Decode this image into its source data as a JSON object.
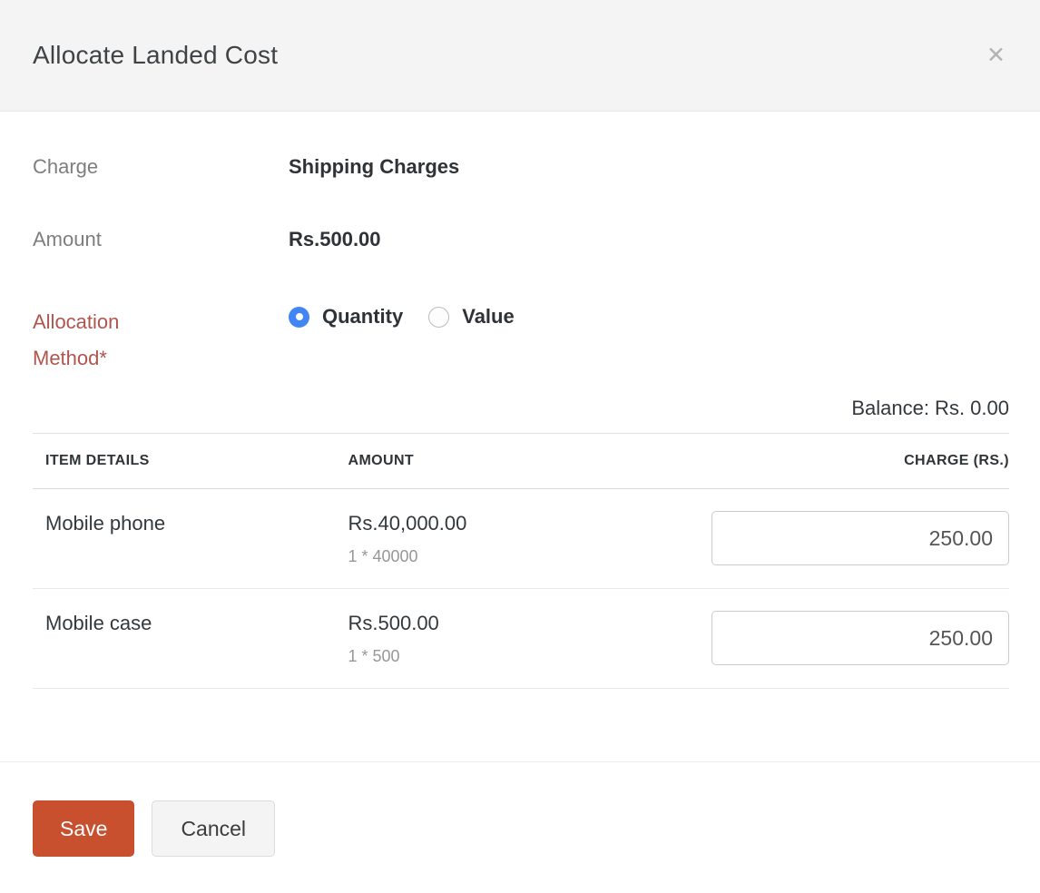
{
  "dialog": {
    "title": "Allocate Landed Cost",
    "close_icon": "✕"
  },
  "form": {
    "charge": {
      "label": "Charge",
      "value": "Shipping Charges"
    },
    "amount": {
      "label": "Amount",
      "value": "Rs.500.00"
    },
    "allocation_method": {
      "label": "Allocation Method*",
      "options": [
        {
          "label": "Quantity",
          "selected": true
        },
        {
          "label": "Value",
          "selected": false
        }
      ]
    }
  },
  "balance": {
    "text": "Balance: Rs. 0.00"
  },
  "table": {
    "headers": [
      "ITEM DETAILS",
      "AMOUNT",
      "CHARGE (RS.)"
    ],
    "rows": [
      {
        "item": "Mobile phone",
        "amount": "Rs.40,000.00",
        "calc": "1 * 40000",
        "charge": "250.00"
      },
      {
        "item": "Mobile case",
        "amount": "Rs.500.00",
        "calc": "1 * 500",
        "charge": "250.00"
      }
    ]
  },
  "footer": {
    "save_label": "Save",
    "cancel_label": "Cancel"
  },
  "colors": {
    "accent_radio_blue": "#4285f4",
    "save_button_red": "#c8502f",
    "required_label_red": "#b0554e",
    "header_background": "#f4f4f4"
  }
}
